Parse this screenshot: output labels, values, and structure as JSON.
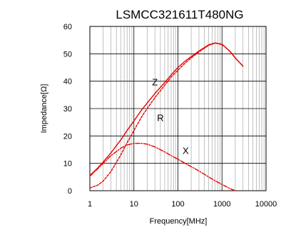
{
  "chart_data": {
    "type": "line",
    "title": "LSMCC321611T480NG",
    "xlabel": "Frequency[MHz]",
    "ylabel": "Impedance[Ω]",
    "x_scale": "log",
    "xlim": [
      1,
      10000
    ],
    "ylim": [
      0,
      60
    ],
    "x_ticks": [
      1,
      10,
      100,
      1000,
      10000
    ],
    "x_tick_labels": [
      "1",
      "10",
      "100",
      "1000",
      "10000"
    ],
    "y_ticks": [
      0,
      10,
      20,
      30,
      40,
      50,
      60
    ],
    "y_tick_labels": [
      "0",
      "10",
      "20",
      "30",
      "40",
      "50",
      "60"
    ],
    "grid": true,
    "legend": "none",
    "series": [
      {
        "name": "Z",
        "color": "#e60000",
        "style": "solid",
        "x": [
          1,
          1.5,
          2,
          3,
          5,
          7,
          10,
          15,
          20,
          30,
          50,
          70,
          100,
          150,
          200,
          300,
          500,
          700,
          1000,
          1500,
          2000,
          3000
        ],
        "y": [
          5.5,
          8.3,
          10.5,
          13.8,
          18.5,
          22,
          25.5,
          29.5,
          32,
          35.5,
          39.5,
          42.3,
          45,
          47.5,
          49,
          51,
          53.3,
          54,
          53.5,
          51,
          48.5,
          45.5
        ]
      },
      {
        "name": "R",
        "color": "#e60000",
        "style": "dashed",
        "x": [
          1,
          1.5,
          2,
          3,
          5,
          7,
          10,
          15,
          20,
          30,
          50,
          70,
          100,
          150,
          200,
          300,
          500,
          700,
          1000,
          1500,
          2000,
          3000
        ],
        "y": [
          1,
          2,
          3.5,
          7,
          13,
          17.5,
          22,
          27,
          30,
          34,
          38.5,
          41.5,
          44,
          46.8,
          48.5,
          50.7,
          53.1,
          53.9,
          53.4,
          51,
          48.5,
          45.5
        ]
      },
      {
        "name": "X",
        "color": "#e60000",
        "style": "dashdot",
        "x": [
          1,
          1.5,
          2,
          3,
          5,
          7,
          10,
          15,
          20,
          30,
          50,
          70,
          100,
          150,
          200,
          300,
          500,
          700,
          1000,
          1500,
          2000
        ],
        "y": [
          5.3,
          8,
          10,
          12.8,
          15.5,
          16.7,
          17.3,
          17.3,
          17,
          16,
          14.2,
          12.8,
          11.5,
          9.9,
          8.8,
          7.2,
          5,
          3.6,
          2.3,
          0.8,
          0
        ]
      }
    ],
    "annotations": [
      {
        "text": "Z",
        "x": 30,
        "y": 38.5
      },
      {
        "text": "R",
        "x": 40,
        "y": 25.5
      },
      {
        "text": "X",
        "x": 150,
        "y": 13.5
      }
    ]
  }
}
